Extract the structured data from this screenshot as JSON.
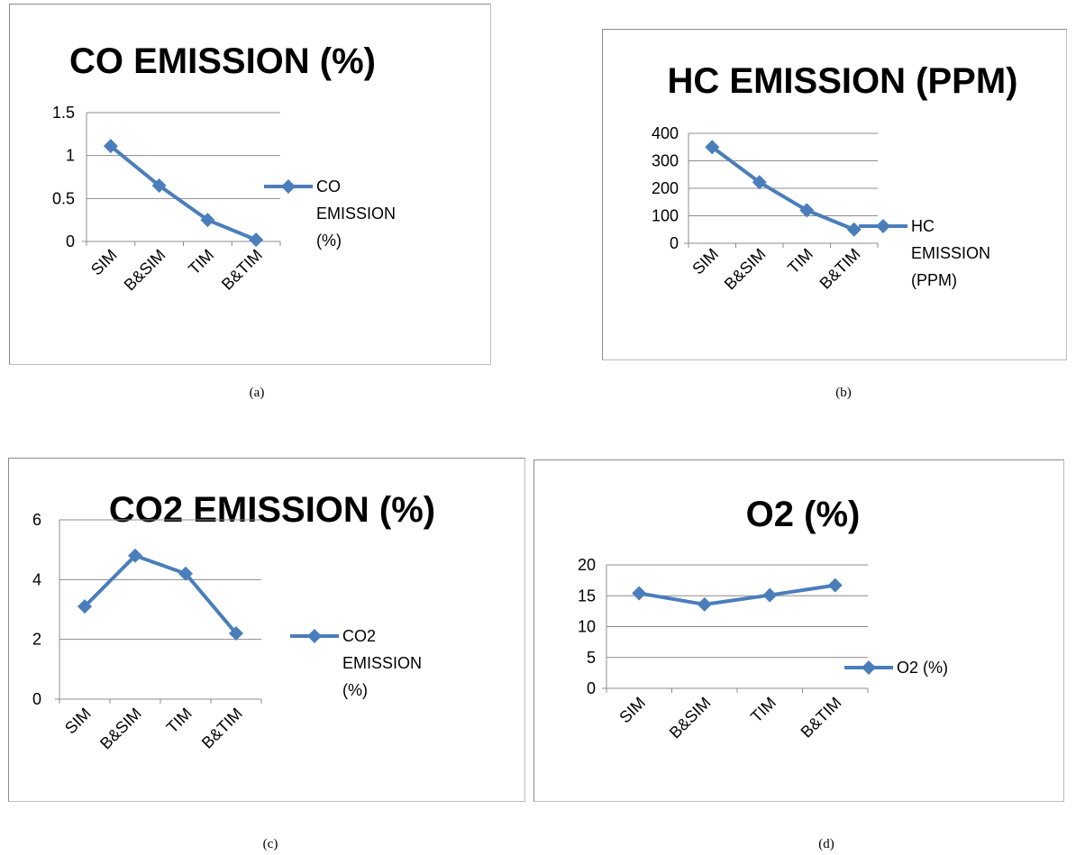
{
  "accent": "#4a7ebb",
  "chart_data": [
    {
      "type": "line",
      "title": "CO EMISSION (%)",
      "categories": [
        "SIM",
        "B&SIM",
        "TIM",
        "B&TIM"
      ],
      "series": [
        {
          "name": "CO EMISSION (%)",
          "values": [
            1.11,
            0.65,
            0.25,
            0.02
          ]
        }
      ],
      "ylim": [
        0,
        1.5
      ],
      "yticks": [
        "0",
        "0.5",
        "1",
        "1.5"
      ],
      "legend_lines": [
        "CO",
        "EMISSION",
        "(%)"
      ],
      "legend": "right",
      "grid": true,
      "caption": "(a)"
    },
    {
      "type": "line",
      "title": "HC EMISSION (PPM)",
      "categories": [
        "SIM",
        "B&SIM",
        "TIM",
        "B&TIM"
      ],
      "series": [
        {
          "name": "HC EMISSION (PPM)",
          "values": [
            350,
            222,
            120,
            50
          ]
        }
      ],
      "ylim": [
        0,
        400
      ],
      "yticks": [
        "0",
        "100",
        "200",
        "300",
        "400"
      ],
      "legend_lines": [
        "HC",
        "EMISSION",
        "(PPM)"
      ],
      "legend": "right",
      "grid": true,
      "caption": "(b)"
    },
    {
      "type": "line",
      "title": "CO2 EMISSION (%)",
      "categories": [
        "SIM",
        "B&SIM",
        "TIM",
        "B&TIM"
      ],
      "series": [
        {
          "name": "CO2 EMISSION (%)",
          "values": [
            3.1,
            4.8,
            4.2,
            2.2
          ]
        }
      ],
      "ylim": [
        0,
        6
      ],
      "yticks": [
        "0",
        "2",
        "4",
        "6"
      ],
      "legend_lines": [
        "CO2",
        "EMISSION",
        "(%)"
      ],
      "legend": "right",
      "grid": true,
      "caption": "(c)"
    },
    {
      "type": "line",
      "title": "O2  (%)",
      "categories": [
        "SIM",
        "B&SIM",
        "TIM",
        "B&TIM"
      ],
      "series": [
        {
          "name": "O2  (%)",
          "values": [
            15.4,
            13.6,
            15.1,
            16.7
          ]
        }
      ],
      "ylim": [
        0,
        20
      ],
      "yticks": [
        "0",
        "5",
        "10",
        "15",
        "20"
      ],
      "legend_lines": [
        "O2  (%)"
      ],
      "legend": "right",
      "grid": true,
      "caption": "(d)"
    }
  ]
}
